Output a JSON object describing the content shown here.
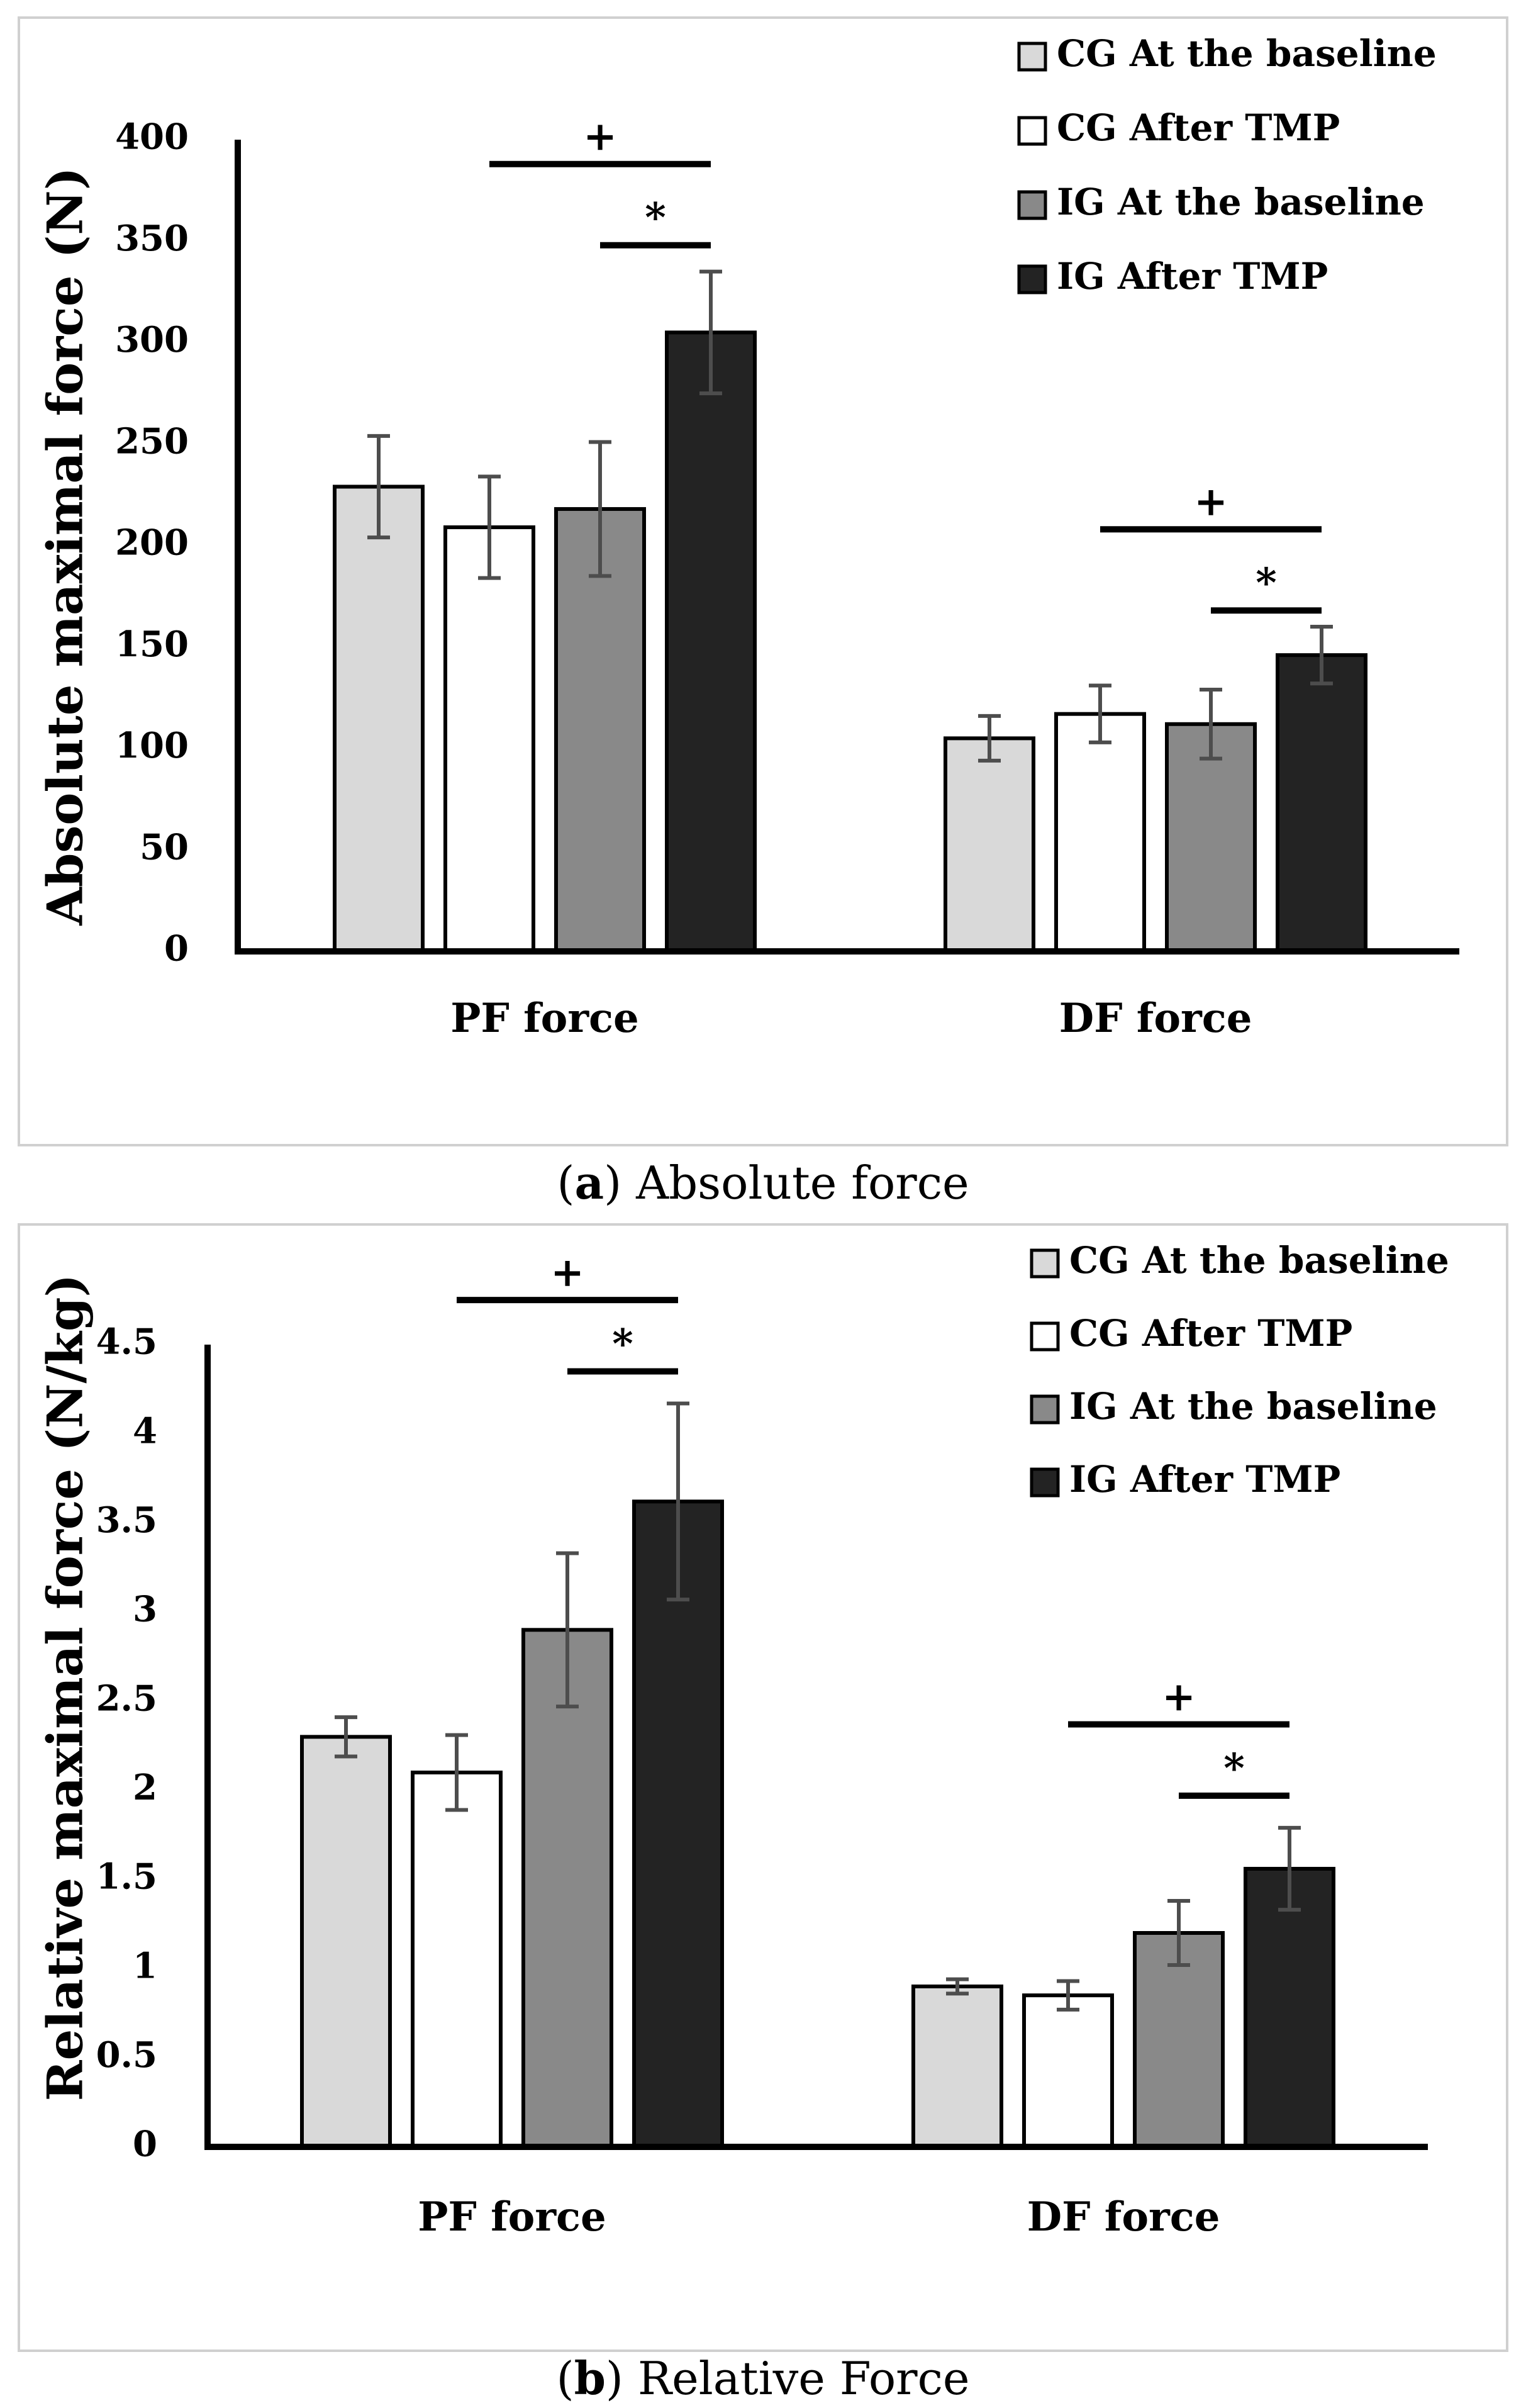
{
  "colors": {
    "cg_baseline": "#d9d9d9",
    "cg_after": "#ffffff",
    "ig_baseline": "#898989",
    "ig_after": "#232323",
    "error_bar": "#4d4d4d",
    "frame": "#d0d0d0"
  },
  "chart_data": [
    {
      "type": "bar",
      "panel": "a",
      "caption_letter": "a",
      "caption_text": "Absolute force",
      "ylabel": "Absolute maximal force (N)",
      "xlabel": "",
      "ylim": [
        0,
        400
      ],
      "yticks": [
        "0",
        "50",
        "100",
        "150",
        "200",
        "250",
        "300",
        "350",
        "400"
      ],
      "categories": [
        "PF force",
        "DF force"
      ],
      "series": [
        {
          "name": "CG At the baseline",
          "values": [
            229,
            105
          ],
          "errors": [
            25,
            11
          ]
        },
        {
          "name": "CG After TMP",
          "values": [
            209,
            117
          ],
          "errors": [
            25,
            14
          ]
        },
        {
          "name": "IG At the baseline",
          "values": [
            218,
            112
          ],
          "errors": [
            33,
            17
          ]
        },
        {
          "name": "IG After TMP",
          "values": [
            305,
            146
          ],
          "errors": [
            30,
            14
          ]
        }
      ],
      "significance": [
        {
          "category": 0,
          "from_series": 1,
          "to_series": 3,
          "y": 388,
          "symbol": "+"
        },
        {
          "category": 0,
          "from_series": 2,
          "to_series": 3,
          "y": 348,
          "symbol": "*"
        },
        {
          "category": 1,
          "from_series": 1,
          "to_series": 3,
          "y": 208,
          "symbol": "+"
        },
        {
          "category": 1,
          "from_series": 2,
          "to_series": 3,
          "y": 168,
          "symbol": "*"
        }
      ],
      "legend": [
        "CG At the baseline",
        "CG After TMP",
        "IG At the baseline",
        "IG After TMP"
      ]
    },
    {
      "type": "bar",
      "panel": "b",
      "caption_letter": "b",
      "caption_text": "Relative Force",
      "ylabel": "Relative maximal force (N/kg)",
      "xlabel": "",
      "ylim": [
        0,
        4.5
      ],
      "yticks": [
        "0",
        "0.5",
        "1",
        "1.5",
        "2",
        "2.5",
        "3",
        "3.5",
        "4",
        "4.5"
      ],
      "categories": [
        "PF force",
        "DF force"
      ],
      "series": [
        {
          "name": "CG At the baseline",
          "values": [
            2.3,
            0.9
          ],
          "errors": [
            0.11,
            0.04
          ]
        },
        {
          "name": "CG After TMP",
          "values": [
            2.1,
            0.85
          ],
          "errors": [
            0.21,
            0.08
          ]
        },
        {
          "name": "IG At the baseline",
          "values": [
            2.9,
            1.2
          ],
          "errors": [
            0.43,
            0.18
          ]
        },
        {
          "name": "IG After TMP",
          "values": [
            3.62,
            1.56
          ],
          "errors": [
            0.55,
            0.23
          ]
        }
      ],
      "significance": [
        {
          "category": 0,
          "from_series": 1,
          "to_series": 3,
          "y": 4.75,
          "symbol": "+"
        },
        {
          "category": 0,
          "from_series": 2,
          "to_series": 3,
          "y": 4.35,
          "symbol": "*"
        },
        {
          "category": 1,
          "from_series": 1,
          "to_series": 3,
          "y": 2.37,
          "symbol": "+"
        },
        {
          "category": 1,
          "from_series": 2,
          "to_series": 3,
          "y": 1.97,
          "symbol": "*"
        }
      ],
      "legend": [
        "CG At the baseline",
        "CG After TMP",
        "IG At the baseline",
        "IG After TMP"
      ]
    }
  ]
}
